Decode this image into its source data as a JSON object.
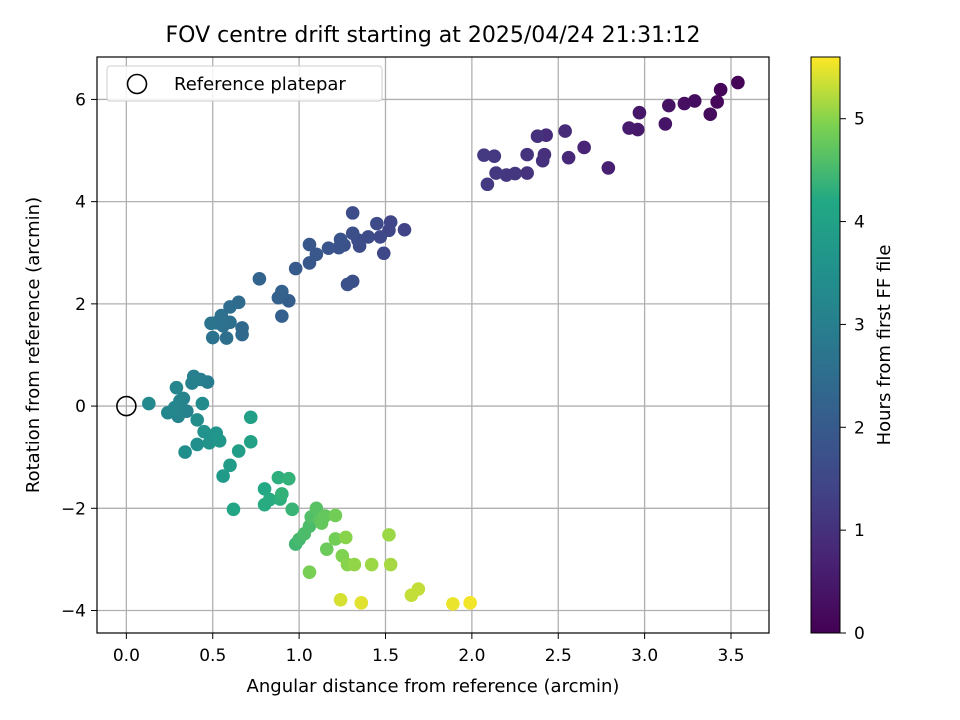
{
  "chart_data": {
    "type": "scatter",
    "title": "FOV centre drift starting at 2025/04/24 21:31:12",
    "xlabel": "Angular distance from reference (arcmin)",
    "ylabel": "Rotation from reference (arcmin)",
    "xlim": [
      -0.17,
      3.72
    ],
    "ylim": [
      -4.44,
      6.83
    ],
    "xticks": [
      0.0,
      0.5,
      1.0,
      1.5,
      2.0,
      2.5,
      3.0,
      3.5
    ],
    "xtick_labels": [
      "0.0",
      "0.5",
      "1.0",
      "1.5",
      "2.0",
      "2.5",
      "3.0",
      "3.5"
    ],
    "yticks": [
      -4,
      -2,
      0,
      2,
      4,
      6
    ],
    "ytick_labels": [
      "−4",
      "−2",
      "0",
      "2",
      "4",
      "6"
    ],
    "grid": true,
    "legend": {
      "placement": "top-left",
      "entries": [
        {
          "label": "Reference platepar",
          "marker": "open-circle"
        }
      ]
    },
    "reference_point": {
      "x": 0.0,
      "y": 0.0
    },
    "colorbar": {
      "label": "Hours from first FF file",
      "colormap": "viridis",
      "range": [
        0,
        5.6
      ],
      "ticks": [
        0,
        1,
        2,
        3,
        4,
        5
      ],
      "tick_labels": [
        "0",
        "1",
        "2",
        "3",
        "4",
        "5"
      ]
    },
    "points": [
      {
        "x": 3.54,
        "y": 6.33,
        "c": 0.05
      },
      {
        "x": 3.44,
        "y": 6.19,
        "c": 0.1
      },
      {
        "x": 3.42,
        "y": 5.95,
        "c": 0.15
      },
      {
        "x": 3.38,
        "y": 5.71,
        "c": 0.2
      },
      {
        "x": 3.29,
        "y": 5.97,
        "c": 0.25
      },
      {
        "x": 3.23,
        "y": 5.92,
        "c": 0.3
      },
      {
        "x": 3.14,
        "y": 5.88,
        "c": 0.35
      },
      {
        "x": 3.12,
        "y": 5.52,
        "c": 0.4
      },
      {
        "x": 2.97,
        "y": 5.74,
        "c": 0.45
      },
      {
        "x": 2.96,
        "y": 5.41,
        "c": 0.5
      },
      {
        "x": 2.91,
        "y": 5.44,
        "c": 0.55
      },
      {
        "x": 2.79,
        "y": 4.66,
        "c": 0.65
      },
      {
        "x": 2.65,
        "y": 5.06,
        "c": 0.75
      },
      {
        "x": 2.56,
        "y": 4.86,
        "c": 0.8
      },
      {
        "x": 2.54,
        "y": 5.38,
        "c": 0.85
      },
      {
        "x": 2.43,
        "y": 5.3,
        "c": 0.9
      },
      {
        "x": 2.42,
        "y": 4.92,
        "c": 0.95
      },
      {
        "x": 2.41,
        "y": 4.8,
        "c": 1.0
      },
      {
        "x": 2.38,
        "y": 5.28,
        "c": 1.0
      },
      {
        "x": 2.32,
        "y": 4.92,
        "c": 1.05
      },
      {
        "x": 2.32,
        "y": 4.56,
        "c": 1.05
      },
      {
        "x": 2.25,
        "y": 4.55,
        "c": 1.1
      },
      {
        "x": 2.2,
        "y": 4.52,
        "c": 1.1
      },
      {
        "x": 2.14,
        "y": 4.56,
        "c": 1.15
      },
      {
        "x": 2.13,
        "y": 4.89,
        "c": 1.15
      },
      {
        "x": 2.09,
        "y": 4.34,
        "c": 1.2
      },
      {
        "x": 2.07,
        "y": 4.91,
        "c": 1.2
      },
      {
        "x": 1.61,
        "y": 3.45,
        "c": 1.4
      },
      {
        "x": 1.53,
        "y": 3.6,
        "c": 1.45
      },
      {
        "x": 1.52,
        "y": 3.44,
        "c": 1.45
      },
      {
        "x": 1.49,
        "y": 2.99,
        "c": 1.5
      },
      {
        "x": 1.47,
        "y": 3.31,
        "c": 1.5
      },
      {
        "x": 1.45,
        "y": 3.57,
        "c": 1.55
      },
      {
        "x": 1.4,
        "y": 3.31,
        "c": 1.6
      },
      {
        "x": 1.35,
        "y": 3.13,
        "c": 1.6
      },
      {
        "x": 1.34,
        "y": 3.25,
        "c": 1.65
      },
      {
        "x": 1.31,
        "y": 3.78,
        "c": 1.65
      },
      {
        "x": 1.31,
        "y": 3.38,
        "c": 1.7
      },
      {
        "x": 1.31,
        "y": 2.44,
        "c": 1.7
      },
      {
        "x": 1.28,
        "y": 2.38,
        "c": 1.75
      },
      {
        "x": 1.26,
        "y": 3.15,
        "c": 1.75
      },
      {
        "x": 1.24,
        "y": 3.26,
        "c": 1.8
      },
      {
        "x": 1.23,
        "y": 3.1,
        "c": 1.8
      },
      {
        "x": 1.17,
        "y": 3.09,
        "c": 1.85
      },
      {
        "x": 1.1,
        "y": 2.97,
        "c": 1.9
      },
      {
        "x": 1.06,
        "y": 3.16,
        "c": 1.9
      },
      {
        "x": 1.06,
        "y": 2.8,
        "c": 1.95
      },
      {
        "x": 0.98,
        "y": 2.69,
        "c": 2.0
      },
      {
        "x": 0.94,
        "y": 2.06,
        "c": 2.1
      },
      {
        "x": 0.9,
        "y": 1.76,
        "c": 2.15
      },
      {
        "x": 0.9,
        "y": 2.24,
        "c": 2.2
      },
      {
        "x": 0.88,
        "y": 2.12,
        "c": 2.2
      },
      {
        "x": 0.77,
        "y": 2.49,
        "c": 2.25
      },
      {
        "x": 0.67,
        "y": 1.4,
        "c": 2.4
      },
      {
        "x": 0.67,
        "y": 1.53,
        "c": 2.4
      },
      {
        "x": 0.65,
        "y": 2.03,
        "c": 2.45
      },
      {
        "x": 0.6,
        "y": 1.94,
        "c": 2.5
      },
      {
        "x": 0.6,
        "y": 1.64,
        "c": 2.55
      },
      {
        "x": 0.58,
        "y": 1.33,
        "c": 2.55
      },
      {
        "x": 0.56,
        "y": 1.57,
        "c": 2.6
      },
      {
        "x": 0.55,
        "y": 1.77,
        "c": 2.6
      },
      {
        "x": 0.52,
        "y": 1.63,
        "c": 2.65
      },
      {
        "x": 0.5,
        "y": 1.34,
        "c": 2.65
      },
      {
        "x": 0.49,
        "y": 1.62,
        "c": 2.7
      },
      {
        "x": 0.47,
        "y": 0.47,
        "c": 2.9
      },
      {
        "x": 0.43,
        "y": 0.52,
        "c": 2.95
      },
      {
        "x": 0.39,
        "y": 0.58,
        "c": 3.0
      },
      {
        "x": 0.38,
        "y": 0.45,
        "c": 3.05
      },
      {
        "x": 0.35,
        "y": -0.1,
        "c": 3.1
      },
      {
        "x": 0.33,
        "y": 0.15,
        "c": 3.1
      },
      {
        "x": 0.31,
        "y": 0.1,
        "c": 3.15
      },
      {
        "x": 0.3,
        "y": -0.2,
        "c": 3.15
      },
      {
        "x": 0.29,
        "y": 0.36,
        "c": 3.2
      },
      {
        "x": 0.28,
        "y": -0.03,
        "c": 3.2
      },
      {
        "x": 0.24,
        "y": -0.13,
        "c": 3.25
      },
      {
        "x": 0.13,
        "y": 0.05,
        "c": 3.3
      },
      {
        "x": 0.44,
        "y": 0.05,
        "c": 3.35
      },
      {
        "x": 0.41,
        "y": -0.27,
        "c": 3.4
      },
      {
        "x": 0.34,
        "y": -0.9,
        "c": 3.45
      },
      {
        "x": 0.41,
        "y": -0.75,
        "c": 3.5
      },
      {
        "x": 0.45,
        "y": -0.5,
        "c": 3.55
      },
      {
        "x": 0.48,
        "y": -0.72,
        "c": 3.6
      },
      {
        "x": 0.5,
        "y": -0.58,
        "c": 3.6
      },
      {
        "x": 0.52,
        "y": -0.53,
        "c": 3.65
      },
      {
        "x": 0.54,
        "y": -0.68,
        "c": 3.7
      },
      {
        "x": 0.56,
        "y": -1.37,
        "c": 3.8
      },
      {
        "x": 0.6,
        "y": -1.16,
        "c": 3.85
      },
      {
        "x": 0.65,
        "y": -0.88,
        "c": 3.9
      },
      {
        "x": 0.72,
        "y": -0.22,
        "c": 3.95
      },
      {
        "x": 0.72,
        "y": -0.7,
        "c": 4.0
      },
      {
        "x": 0.62,
        "y": -2.02,
        "c": 4.1
      },
      {
        "x": 0.8,
        "y": -1.62,
        "c": 4.2
      },
      {
        "x": 0.8,
        "y": -1.93,
        "c": 4.25
      },
      {
        "x": 0.83,
        "y": -1.83,
        "c": 4.25
      },
      {
        "x": 0.88,
        "y": -1.4,
        "c": 4.3
      },
      {
        "x": 0.89,
        "y": -1.82,
        "c": 4.3
      },
      {
        "x": 0.9,
        "y": -1.72,
        "c": 4.35
      },
      {
        "x": 0.94,
        "y": -1.42,
        "c": 4.35
      },
      {
        "x": 0.96,
        "y": -2.02,
        "c": 4.4
      },
      {
        "x": 0.98,
        "y": -2.7,
        "c": 4.45
      },
      {
        "x": 1.0,
        "y": -2.61,
        "c": 4.5
      },
      {
        "x": 1.03,
        "y": -2.5,
        "c": 4.55
      },
      {
        "x": 1.06,
        "y": -2.35,
        "c": 4.55
      },
      {
        "x": 1.07,
        "y": -2.17,
        "c": 4.6
      },
      {
        "x": 1.09,
        "y": -2.13,
        "c": 4.6
      },
      {
        "x": 1.1,
        "y": -2.0,
        "c": 4.65
      },
      {
        "x": 1.12,
        "y": -2.22,
        "c": 4.7
      },
      {
        "x": 1.13,
        "y": -2.29,
        "c": 4.75
      },
      {
        "x": 1.15,
        "y": -2.15,
        "c": 4.75
      },
      {
        "x": 1.16,
        "y": -2.8,
        "c": 4.8
      },
      {
        "x": 1.21,
        "y": -2.14,
        "c": 4.85
      },
      {
        "x": 1.21,
        "y": -2.6,
        "c": 4.85
      },
      {
        "x": 1.06,
        "y": -3.25,
        "c": 4.9
      },
      {
        "x": 1.25,
        "y": -2.93,
        "c": 4.95
      },
      {
        "x": 1.27,
        "y": -2.57,
        "c": 5.0
      },
      {
        "x": 1.28,
        "y": -3.1,
        "c": 5.0
      },
      {
        "x": 1.32,
        "y": -3.1,
        "c": 5.05
      },
      {
        "x": 1.42,
        "y": -3.1,
        "c": 5.1
      },
      {
        "x": 1.52,
        "y": -2.52,
        "c": 5.1
      },
      {
        "x": 1.53,
        "y": -3.1,
        "c": 5.15
      },
      {
        "x": 1.65,
        "y": -3.7,
        "c": 5.3
      },
      {
        "x": 1.69,
        "y": -3.58,
        "c": 5.3
      },
      {
        "x": 1.24,
        "y": -3.79,
        "c": 5.4
      },
      {
        "x": 1.36,
        "y": -3.85,
        "c": 5.45
      },
      {
        "x": 1.89,
        "y": -3.87,
        "c": 5.5
      },
      {
        "x": 1.99,
        "y": -3.85,
        "c": 5.55
      }
    ]
  }
}
